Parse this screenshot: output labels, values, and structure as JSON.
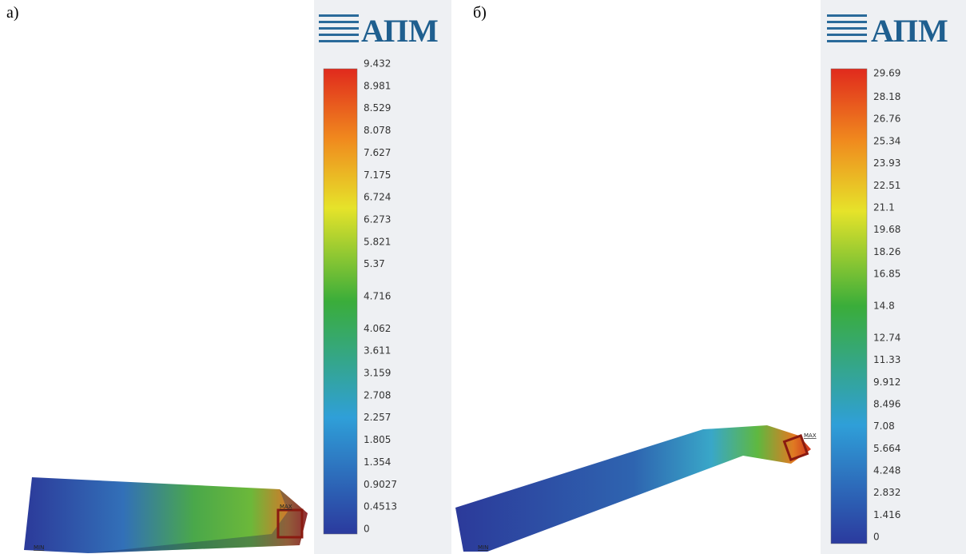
{
  "panels": [
    {
      "label": "а)",
      "logo": "АПМ",
      "max_marker": "MAX",
      "min_marker": "MIN",
      "scale_labels": [
        "9.432",
        "8.981",
        "8.529",
        "8.078",
        "7.627",
        "7.175",
        "6.724",
        "6.273",
        "5.821",
        "5.37",
        "4.716",
        "4.062",
        "3.611",
        "3.159",
        "2.708",
        "2.257",
        "1.805",
        "1.354",
        "0.9027",
        "0.4513",
        "0"
      ]
    },
    {
      "label": "б)",
      "logo": "АПМ",
      "max_marker": "MAX",
      "min_marker": "MIN",
      "scale_labels": [
        "29.69",
        "28.18",
        "26.76",
        "25.34",
        "23.93",
        "22.51",
        "21.1",
        "19.68",
        "18.26",
        "16.85",
        "14.8",
        "12.74",
        "11.33",
        "9.912",
        "8.496",
        "7.08",
        "5.664",
        "4.248",
        "2.832",
        "1.416",
        "0"
      ]
    }
  ]
}
